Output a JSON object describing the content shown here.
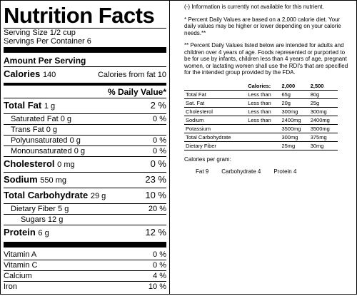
{
  "label": {
    "title": "Nutrition Facts",
    "serving_size": "Serving Size 1/2 cup",
    "servings_per_container": "Servings Per Container 6",
    "amount_per_serving": "Amount Per Serving",
    "calories_label": "Calories",
    "calories_value": "140",
    "calories_fat_label": "Calories from fat",
    "calories_fat_value": "10",
    "dv_header": "% Daily Value*",
    "nutrients": {
      "total_fat": {
        "name": "Total Fat",
        "amount": "1 g",
        "pct": "2 %"
      },
      "saturated_fat": {
        "name": "Saturated Fat",
        "amount": "0 g",
        "pct": "0 %"
      },
      "trans_fat": {
        "name": "Trans Fat",
        "amount": "0 g"
      },
      "poly_fat": {
        "name": "Polyunsaturated",
        "amount": "0 g",
        "pct": "0 %"
      },
      "mono_fat": {
        "name": "Monounsaturated",
        "amount": "0 g",
        "pct": "0 %"
      },
      "cholesterol": {
        "name": "Cholesterol",
        "amount": "0 mg",
        "pct": "0 %"
      },
      "sodium": {
        "name": "Sodium",
        "amount": "550 mg",
        "pct": "23 %"
      },
      "total_carb": {
        "name": "Total Carbohydrate",
        "amount": "29 g",
        "pct": "10 %"
      },
      "fiber": {
        "name": "Dietary Fiber",
        "amount": "5 g",
        "pct": "20 %"
      },
      "sugars": {
        "name": "Sugars",
        "amount": "12 g"
      },
      "protein": {
        "name": "Protein",
        "amount": "6 g",
        "pct": "12 %"
      }
    },
    "vitamins": [
      {
        "name": "Vitamin A",
        "pct": "0 %"
      },
      {
        "name": "Vitamin C",
        "pct": "0 %"
      },
      {
        "name": "Calcium",
        "pct": "4 %"
      },
      {
        "name": "Iron",
        "pct": "10 %"
      }
    ]
  },
  "info": {
    "note_unavailable": "(-) Information is currently not available for this nutrient.",
    "note_percent": "* Percent Daily Values are based on a 2,000 calorie diet. Your daily values may be higher or lower depending on your calorie needs.**",
    "note_rdi": "** Percent Daily Values listed below are intended for adults and children over 4 years of age. Foods represented or purported to be for use by infants, children less than 4 years of age, pregnant women, or lactating women shall use the RDI's that are specified for the intended group provided by the FDA.",
    "table": {
      "header": [
        "",
        "Calories:",
        "2,000",
        "2,500"
      ],
      "rows": [
        [
          "Total Fat",
          "Less than",
          "65g",
          "80g"
        ],
        [
          "Sat. Fat",
          "Less than",
          "20g",
          "25g"
        ],
        [
          "Cholesterol",
          "Less than",
          "300mg",
          "300mg"
        ],
        [
          "Sodium",
          "Less than",
          "2400mg",
          "2400mg"
        ],
        [
          "Potassium",
          "",
          "3500mg",
          "3500mg"
        ],
        [
          "Total Carbohydrate",
          "",
          "300mg",
          "375mg"
        ],
        [
          "Dietary Fiber",
          "",
          "25mg",
          "30mg"
        ]
      ]
    },
    "calories_per_gram_title": "Calories per gram:",
    "calories_per_gram": [
      "Fat 9",
      "Carbohydrate 4",
      "Protein 4"
    ]
  }
}
